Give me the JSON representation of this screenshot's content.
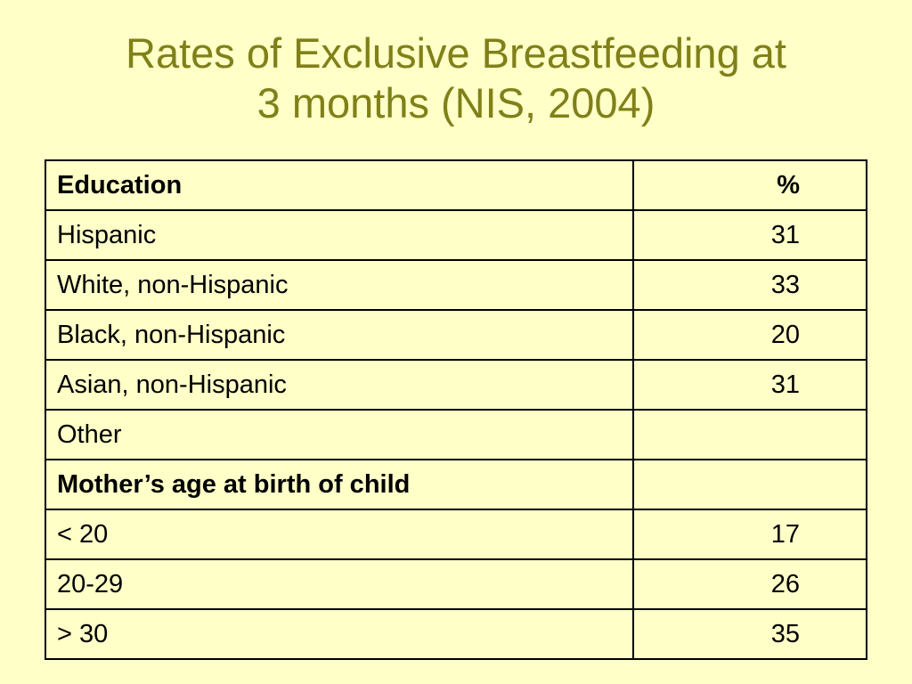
{
  "title": {
    "line1": "Rates of Exclusive Breastfeeding at",
    "line2": "3 months (NIS, 2004)"
  },
  "table": {
    "header": {
      "label": "Education",
      "value": "%"
    },
    "rows": [
      {
        "label": "Hispanic",
        "value": "31"
      },
      {
        "label": "White, non-Hispanic",
        "value": "33"
      },
      {
        "label": "Black, non-Hispanic",
        "value": "20"
      },
      {
        "label": "Asian, non-Hispanic",
        "value": "31"
      },
      {
        "label": "Other",
        "value": ""
      },
      {
        "label": "Mother’s age at birth of child",
        "value": ""
      },
      {
        "label": "< 20",
        "value": "17"
      },
      {
        "label": "20-29",
        "value": "26"
      },
      {
        "label": "> 30",
        "value": "35"
      }
    ]
  },
  "colors": {
    "background": "#ffffc8",
    "title": "#808019",
    "text": "#000000"
  }
}
